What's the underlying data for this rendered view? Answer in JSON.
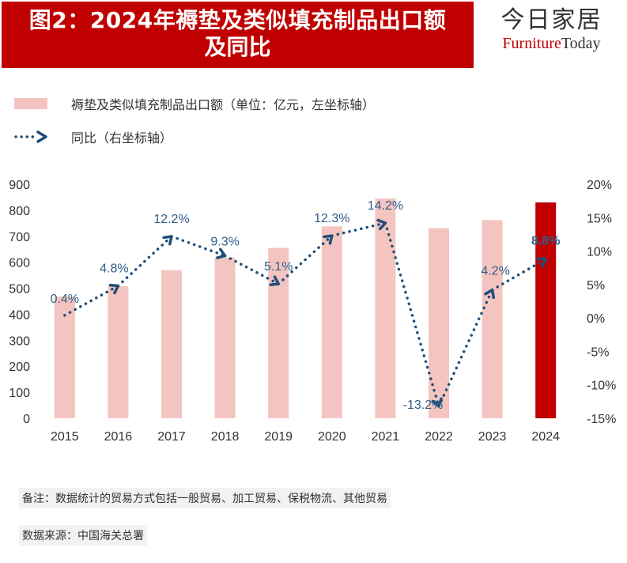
{
  "title": {
    "line1": "图2：2024年褥垫及类似填充制品出口额",
    "line2": "及同比"
  },
  "brand": {
    "cn": "今日家居",
    "en_a": "Furniture",
    "en_b": "Today"
  },
  "legend": {
    "bar_label": "褥垫及类似填充制品出口额（单位：亿元，左坐标轴）",
    "line_label": "同比（右坐标轴）"
  },
  "colors": {
    "title_bg": "#c00000",
    "bar": "#f4c5c0",
    "bar_highlight": "#c00000",
    "line": "#1f4e79",
    "label": "#2e5f8a"
  },
  "chart_data": {
    "type": "bar",
    "categories": [
      "2015",
      "2016",
      "2017",
      "2018",
      "2019",
      "2020",
      "2021",
      "2022",
      "2023",
      "2024"
    ],
    "series": [
      {
        "name": "褥垫及类似填充制品出口额（单位：亿元，左坐标轴）",
        "axis": "left",
        "type": "bar",
        "values": [
          468,
          508,
          570,
          618,
          655,
          738,
          845,
          731,
          762,
          830
        ]
      },
      {
        "name": "同比（右坐标轴）",
        "axis": "right",
        "type": "line",
        "values": [
          0.4,
          4.8,
          12.2,
          9.3,
          5.1,
          12.3,
          14.2,
          -13.2,
          4.2,
          8.8
        ],
        "labels": [
          "0.4%",
          "4.8%",
          "12.2%",
          "9.3%",
          "5.1%",
          "12.3%",
          "14.2%",
          "-13.2%",
          "4.2%",
          "8.8%"
        ]
      }
    ],
    "highlight_index": 9,
    "y_left": {
      "min": 0,
      "max": 900,
      "step": 100,
      "ticks": [
        "0",
        "100",
        "200",
        "300",
        "400",
        "500",
        "600",
        "700",
        "800",
        "900"
      ]
    },
    "y_right": {
      "min": -15,
      "max": 20,
      "step": 5,
      "ticks": [
        "-15%",
        "-10%",
        "-5%",
        "0%",
        "5%",
        "10%",
        "15%",
        "20%"
      ]
    }
  },
  "footer": {
    "note": "备注：数据统计的贸易方式包括一般贸易、加工贸易、保税物流、其他贸易",
    "source": "数据来源：中国海关总署"
  }
}
